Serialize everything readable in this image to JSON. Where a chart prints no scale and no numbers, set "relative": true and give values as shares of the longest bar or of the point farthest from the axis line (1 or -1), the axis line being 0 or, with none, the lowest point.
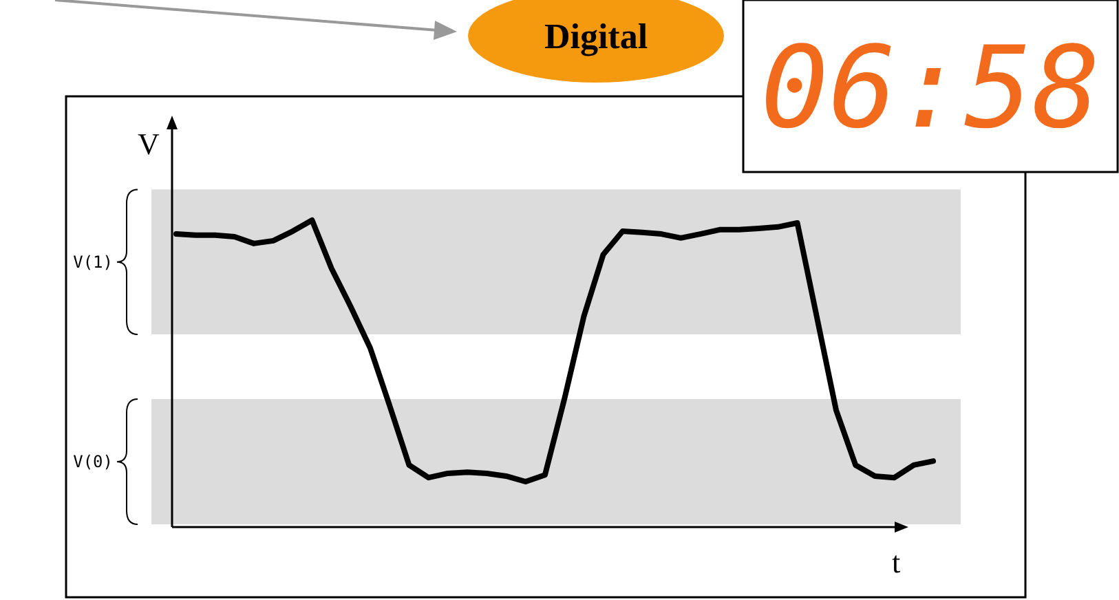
{
  "chart_data": {
    "type": "line",
    "relative": true,
    "xlabel": "t",
    "ylabel": "V",
    "categories": [
      null,
      null,
      null,
      null,
      null,
      null,
      null,
      null,
      null,
      null,
      null,
      null,
      null,
      null,
      null,
      null,
      null,
      null,
      null,
      null,
      null,
      null,
      null,
      null,
      null,
      null,
      null,
      null,
      null,
      null,
      null,
      null,
      null,
      null,
      null,
      null,
      null,
      null,
      null,
      null
    ],
    "series": [
      {
        "color": "#000000",
        "values": [
          0.955,
          0.951,
          0.951,
          0.946,
          0.924,
          0.933,
          0.964,
          1.0,
          0.843,
          0.717,
          0.583,
          0.395,
          0.202,
          0.161,
          0.175,
          0.179,
          0.175,
          0.166,
          0.148,
          0.17,
          0.417,
          0.686,
          0.888,
          0.964,
          0.96,
          0.955,
          0.942,
          0.955,
          0.969,
          0.969,
          0.973,
          0.978,
          0.991,
          0.686,
          0.381,
          0.202,
          0.166,
          0.161,
          0.202,
          0.215
        ]
      }
    ],
    "bands": [
      {
        "axis": "y",
        "from": 0.628,
        "to": 1.1,
        "label": "V(1)",
        "color": "#dcdcdc"
      },
      {
        "axis": "y",
        "from": 0.009,
        "to": 0.417,
        "label": "V(0)",
        "color": "#dcdcdc"
      }
    ],
    "annotations": [
      "Digital",
      "06:58"
    ],
    "line_style": "solid"
  }
}
